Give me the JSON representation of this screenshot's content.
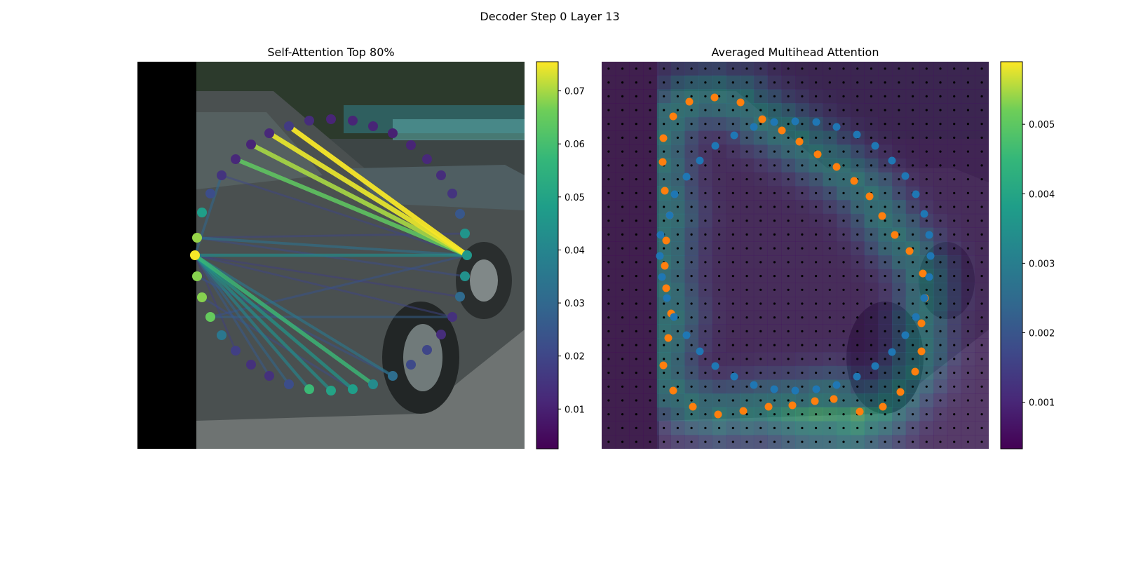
{
  "figure": {
    "suptitle": "Decoder Step 0 Layer 13"
  },
  "chart_data": [
    {
      "type": "scatter",
      "title": "Self-Attention Top 80%",
      "description_kind": "graph of query points over camera image, edges weighted by attention",
      "colormap": "viridis",
      "colorbar": {
        "min": 0.0025,
        "max": 0.0755,
        "ticks": [
          0.01,
          0.02,
          0.03,
          0.04,
          0.05,
          0.06,
          0.07
        ]
      },
      "points": [
        {
          "x": 281,
          "y": 339,
          "v": 0.069
        },
        {
          "x": 288,
          "y": 303,
          "v": 0.048
        },
        {
          "x": 300,
          "y": 276,
          "v": 0.022
        },
        {
          "x": 316,
          "y": 250,
          "v": 0.015
        },
        {
          "x": 336,
          "y": 227,
          "v": 0.012
        },
        {
          "x": 358,
          "y": 206,
          "v": 0.011
        },
        {
          "x": 384,
          "y": 190,
          "v": 0.012
        },
        {
          "x": 412,
          "y": 180,
          "v": 0.017
        },
        {
          "x": 441,
          "y": 172,
          "v": 0.013
        },
        {
          "x": 472,
          "y": 170,
          "v": 0.011
        },
        {
          "x": 503,
          "y": 172,
          "v": 0.011
        },
        {
          "x": 532,
          "y": 180,
          "v": 0.011
        },
        {
          "x": 560,
          "y": 190,
          "v": 0.01
        },
        {
          "x": 586,
          "y": 207,
          "v": 0.011
        },
        {
          "x": 609,
          "y": 227,
          "v": 0.012
        },
        {
          "x": 629,
          "y": 250,
          "v": 0.013
        },
        {
          "x": 645,
          "y": 276,
          "v": 0.015
        },
        {
          "x": 656,
          "y": 305,
          "v": 0.025
        },
        {
          "x": 663,
          "y": 333,
          "v": 0.045
        },
        {
          "x": 666,
          "y": 364,
          "v": 0.046
        },
        {
          "x": 663,
          "y": 394,
          "v": 0.044
        },
        {
          "x": 656,
          "y": 423,
          "v": 0.031
        },
        {
          "x": 645,
          "y": 452,
          "v": 0.014
        },
        {
          "x": 629,
          "y": 477,
          "v": 0.013
        },
        {
          "x": 609,
          "y": 499,
          "v": 0.02
        },
        {
          "x": 586,
          "y": 520,
          "v": 0.021
        },
        {
          "x": 560,
          "y": 536,
          "v": 0.032
        },
        {
          "x": 532,
          "y": 548,
          "v": 0.042
        },
        {
          "x": 503,
          "y": 555,
          "v": 0.048
        },
        {
          "x": 472,
          "y": 557,
          "v": 0.05
        },
        {
          "x": 441,
          "y": 555,
          "v": 0.058
        },
        {
          "x": 412,
          "y": 548,
          "v": 0.022
        },
        {
          "x": 384,
          "y": 536,
          "v": 0.014
        },
        {
          "x": 358,
          "y": 520,
          "v": 0.014
        },
        {
          "x": 336,
          "y": 500,
          "v": 0.018
        },
        {
          "x": 316,
          "y": 478,
          "v": 0.035
        },
        {
          "x": 300,
          "y": 452,
          "v": 0.065
        },
        {
          "x": 288,
          "y": 424,
          "v": 0.068
        },
        {
          "x": 281,
          "y": 394,
          "v": 0.068
        },
        {
          "x": 278,
          "y": 364,
          "v": 0.075
        }
      ],
      "edges": [
        {
          "from": 19,
          "to": 6,
          "w": 0.074
        },
        {
          "from": 19,
          "to": 7,
          "w": 0.075
        },
        {
          "from": 19,
          "to": 5,
          "w": 0.07
        },
        {
          "from": 19,
          "to": 4,
          "w": 0.064
        },
        {
          "from": 19,
          "to": 0,
          "w": 0.033
        },
        {
          "from": 19,
          "to": 39,
          "w": 0.043
        },
        {
          "from": 19,
          "to": 36,
          "w": 0.024
        },
        {
          "from": 19,
          "to": 3,
          "w": 0.02
        },
        {
          "from": 39,
          "to": 27,
          "w": 0.058
        },
        {
          "from": 39,
          "to": 28,
          "w": 0.046
        },
        {
          "from": 39,
          "to": 29,
          "w": 0.044
        },
        {
          "from": 39,
          "to": 30,
          "w": 0.04
        },
        {
          "from": 39,
          "to": 26,
          "w": 0.036
        },
        {
          "from": 39,
          "to": 31,
          "w": 0.03
        },
        {
          "from": 39,
          "to": 32,
          "w": 0.026
        },
        {
          "from": 39,
          "to": 22,
          "w": 0.02
        },
        {
          "from": 39,
          "to": 34,
          "w": 0.018
        },
        {
          "from": 39,
          "to": 21,
          "w": 0.018
        },
        {
          "from": 0,
          "to": 20,
          "w": 0.022
        },
        {
          "from": 36,
          "to": 22,
          "w": 0.027
        },
        {
          "from": 0,
          "to": 18,
          "w": 0.02
        },
        {
          "from": 3,
          "to": 39,
          "w": 0.03
        },
        {
          "from": 38,
          "to": 26,
          "w": 0.024
        },
        {
          "from": 37,
          "to": 28,
          "w": 0.022
        }
      ]
    },
    {
      "type": "heatmap",
      "title": "Averaged Multihead Attention",
      "colormap": "viridis",
      "colorbar": {
        "min": 0.00033,
        "max": 0.0059,
        "ticks": [
          0.001,
          0.002,
          0.003,
          0.004,
          0.005
        ]
      },
      "grid": {
        "cols": 28,
        "rows": 28
      },
      "series": [
        {
          "color": "#ff7f0e",
          "points": [
            [
              983,
              145
            ],
            [
              1019,
              139
            ],
            [
              1056,
              146
            ],
            [
              1087,
              170
            ],
            [
              1115,
              186
            ],
            [
              1140,
              202
            ],
            [
              1166,
              220
            ],
            [
              1193,
              238
            ],
            [
              1218,
              258
            ],
            [
              1240,
              280
            ],
            [
              1258,
              308
            ],
            [
              1276,
              335
            ],
            [
              1297,
              358
            ],
            [
              1316,
              390
            ],
            [
              1319,
              425
            ],
            [
              1314,
              461
            ],
            [
              1314,
              501
            ],
            [
              1305,
              530
            ],
            [
              1284,
              559
            ],
            [
              1259,
              580
            ],
            [
              1226,
              587
            ],
            [
              1189,
              569
            ],
            [
              1162,
              572
            ],
            [
              1130,
              578
            ],
            [
              1096,
              580
            ],
            [
              1060,
              586
            ],
            [
              1024,
              591
            ],
            [
              988,
              580
            ],
            [
              960,
              557
            ],
            [
              946,
              521
            ],
            [
              953,
              482
            ],
            [
              957,
              447
            ],
            [
              950,
              411
            ],
            [
              948,
              379
            ],
            [
              950,
              343
            ],
            [
              955,
              307
            ],
            [
              948,
              272
            ],
            [
              945,
              231
            ],
            [
              946,
              197
            ],
            [
              960,
              166
            ]
          ]
        },
        {
          "color": "#1f77b4",
          "points": [
            [
              1047,
              193
            ],
            [
              1075,
              181
            ],
            [
              1104,
              174
            ],
            [
              1134,
              173
            ],
            [
              1164,
              174
            ],
            [
              1193,
              181
            ],
            [
              1222,
              192
            ],
            [
              1248,
              208
            ],
            [
              1272,
              229
            ],
            [
              1291,
              251
            ],
            [
              1306,
              277
            ],
            [
              1318,
              305
            ],
            [
              1325,
              335
            ],
            [
              1327,
              365
            ],
            [
              1325,
              395
            ],
            [
              1318,
              425
            ],
            [
              1306,
              452
            ],
            [
              1291,
              478
            ],
            [
              1272,
              502
            ],
            [
              1248,
              522
            ],
            [
              1222,
              537
            ],
            [
              1193,
              549
            ],
            [
              1164,
              555
            ],
            [
              1134,
              557
            ],
            [
              1104,
              555
            ],
            [
              1075,
              549
            ],
            [
              1047,
              537
            ],
            [
              1020,
              522
            ],
            [
              998,
              501
            ],
            [
              979,
              478
            ],
            [
              961,
              452
            ],
            [
              951,
              425
            ],
            [
              944,
              395
            ],
            [
              941,
              365
            ],
            [
              942,
              335
            ],
            [
              955,
              307
            ],
            [
              962,
              277
            ],
            [
              979,
              252
            ],
            [
              998,
              229
            ],
            [
              1020,
              208
            ]
          ]
        }
      ]
    }
  ]
}
